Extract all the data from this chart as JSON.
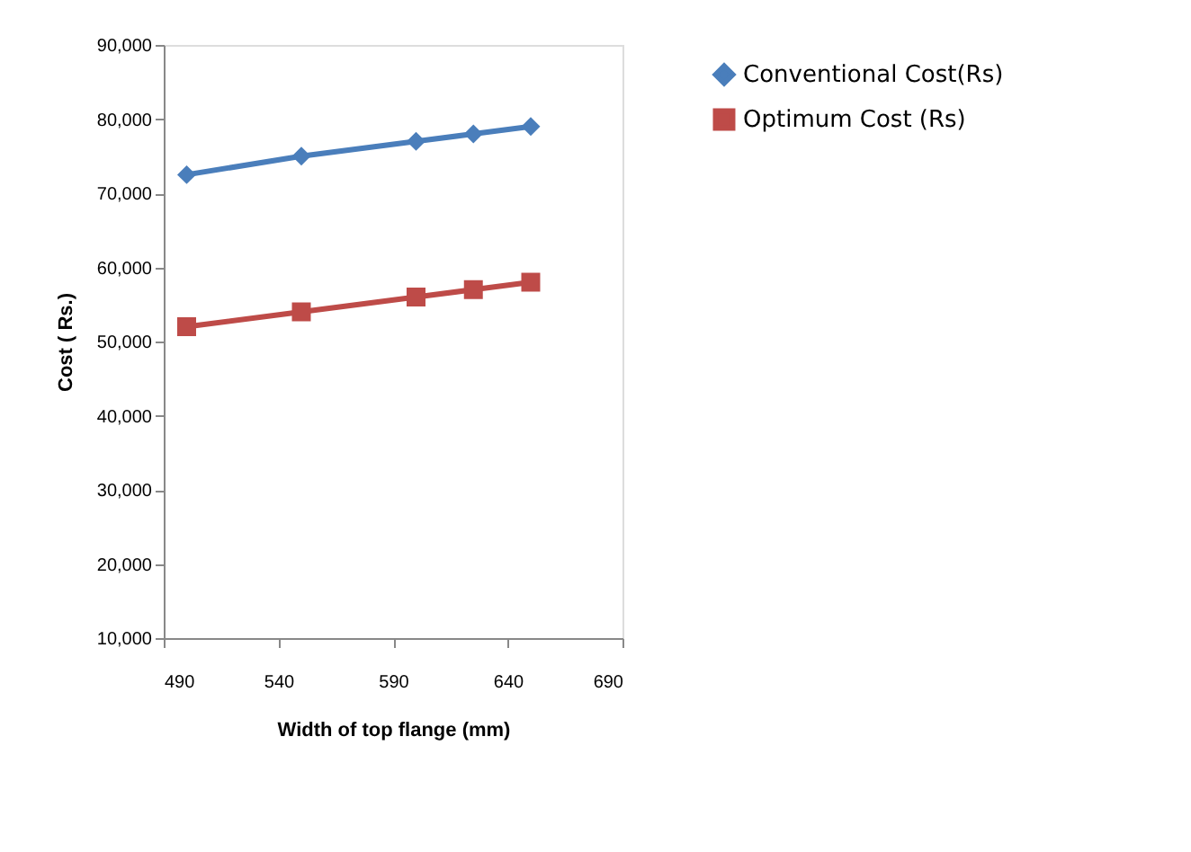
{
  "chart_data": {
    "type": "line",
    "xlabel": "Width of top flange (mm)",
    "ylabel": "Cost ( Rs.)",
    "x": [
      500,
      550,
      600,
      625,
      650
    ],
    "series": [
      {
        "name": "Conventional Cost(Rs)",
        "color": "#4a7ebb",
        "marker": "diamond",
        "values": [
          72500,
          75000,
          77000,
          78000,
          79000
        ]
      },
      {
        "name": "Optimum Cost (Rs)",
        "color": "#be4b48",
        "marker": "square",
        "values": [
          52000,
          54000,
          56000,
          57000,
          58000
        ]
      }
    ],
    "xlim": [
      490,
      690
    ],
    "xticks": [
      490,
      540,
      590,
      640,
      690
    ],
    "ylim": [
      10000,
      90000
    ],
    "yticks": [
      {
        "value": 10000,
        "label": "10,000"
      },
      {
        "value": 20000,
        "label": "20,000"
      },
      {
        "value": 30000,
        "label": "30,000"
      },
      {
        "value": 40000,
        "label": "40,000"
      },
      {
        "value": 50000,
        "label": "50,000"
      },
      {
        "value": 60000,
        "label": "60,000"
      },
      {
        "value": 70000,
        "label": "70,000"
      },
      {
        "value": 80000,
        "label": "80,000"
      },
      {
        "value": 90000,
        "label": "90,000"
      }
    ],
    "grid": false,
    "legend": "right"
  }
}
